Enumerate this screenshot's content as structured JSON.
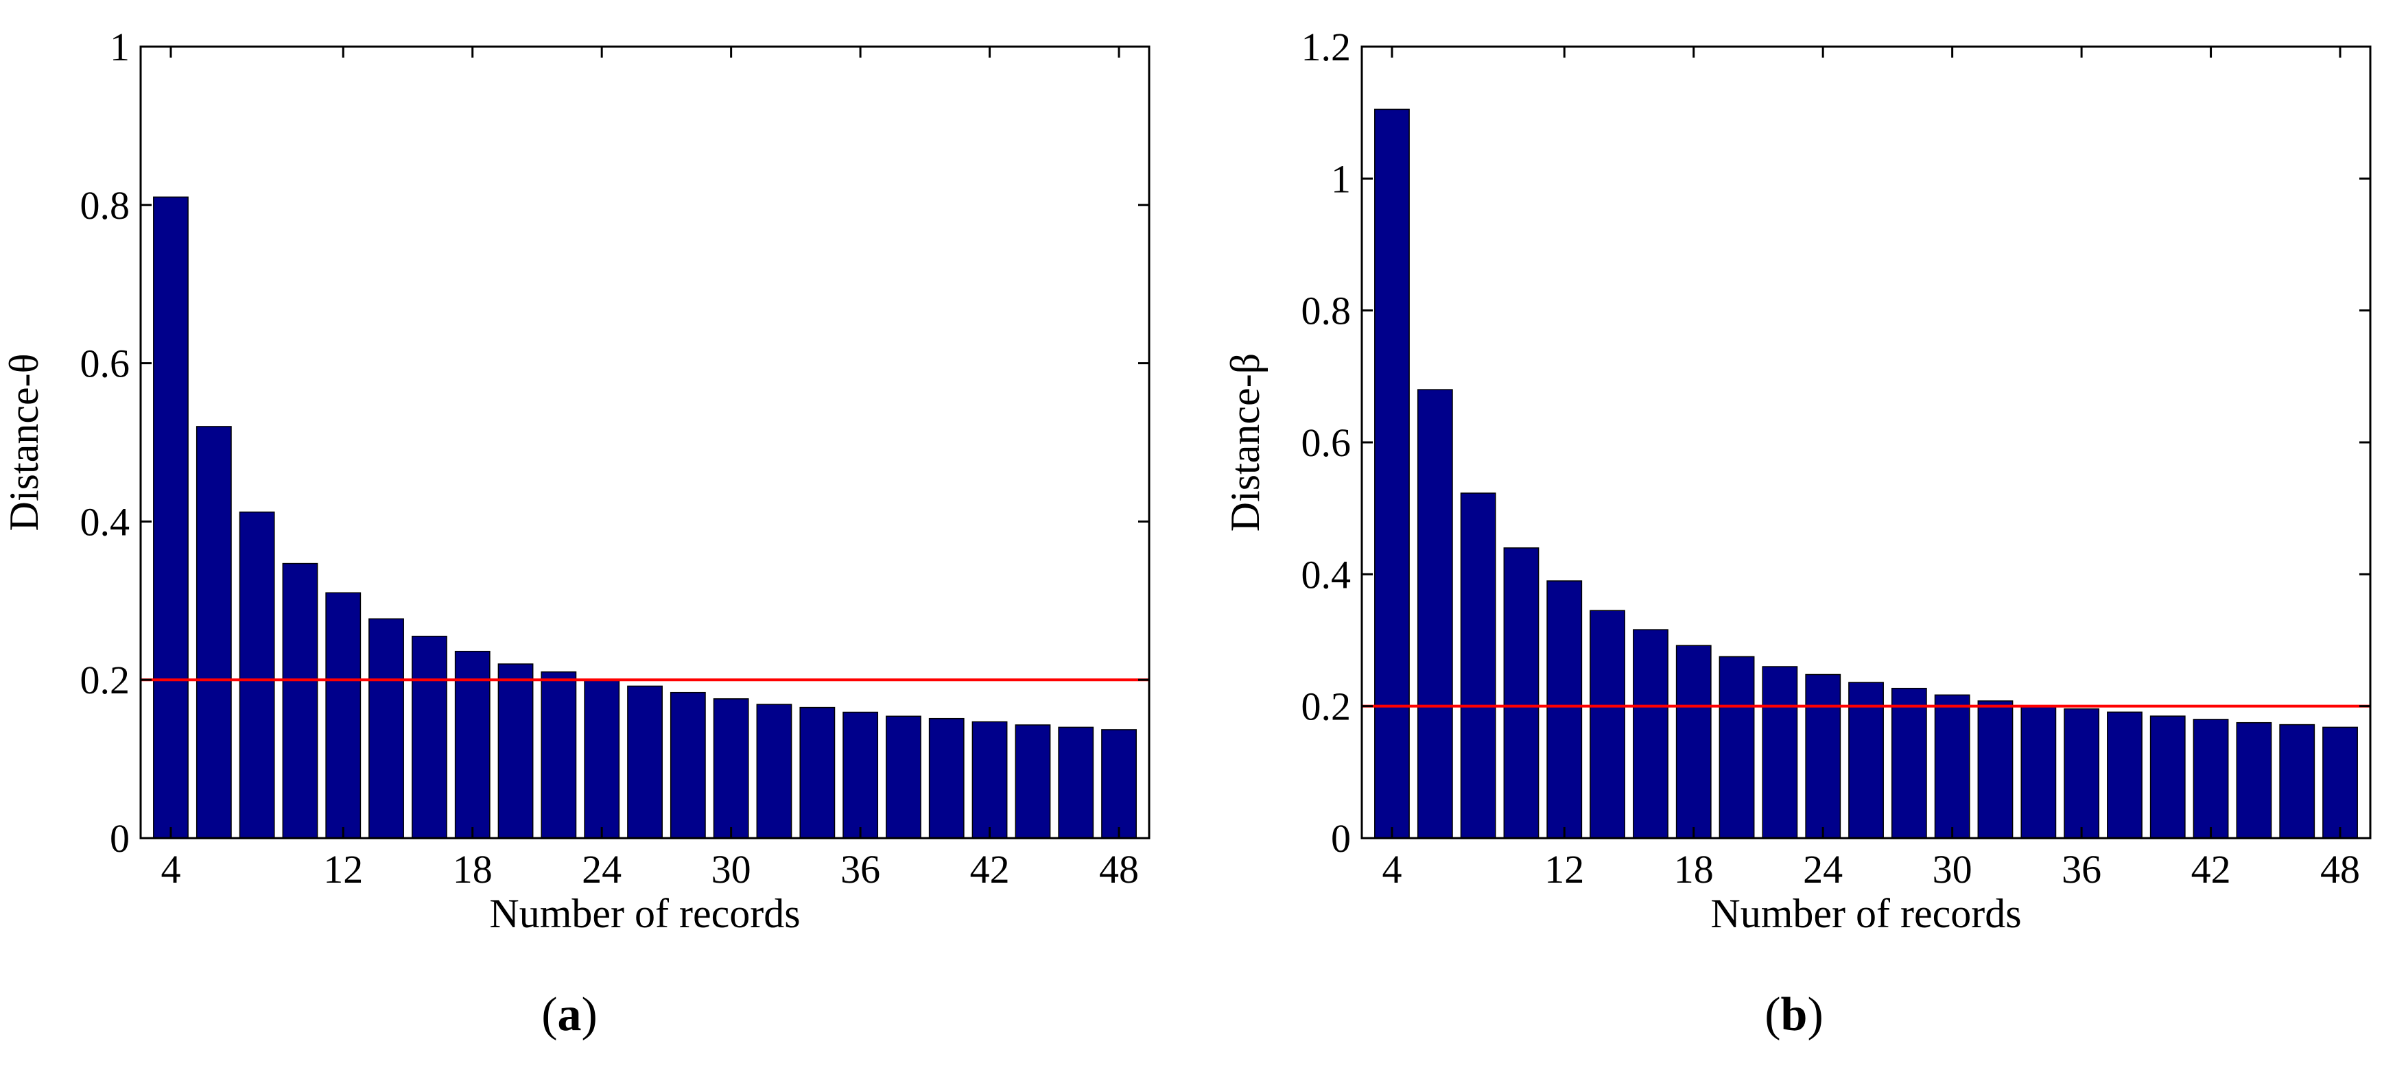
{
  "chart_data": [
    {
      "type": "bar",
      "panel_label": "a",
      "xlabel": "Number of records",
      "ylabel": "Distance-θ",
      "categories": [
        4,
        6,
        8,
        10,
        12,
        14,
        16,
        18,
        20,
        22,
        24,
        26,
        28,
        30,
        32,
        34,
        36,
        38,
        40,
        42,
        44,
        46,
        48
      ],
      "values": [
        0.81,
        0.52,
        0.412,
        0.347,
        0.31,
        0.277,
        0.255,
        0.236,
        0.22,
        0.21,
        0.2,
        0.192,
        0.184,
        0.176,
        0.169,
        0.165,
        0.159,
        0.154,
        0.151,
        0.147,
        0.143,
        0.14,
        0.137
      ],
      "x_ticks": [
        "4",
        "12",
        "18",
        "24",
        "30",
        "36",
        "42",
        "48"
      ],
      "x_tick_values": [
        4,
        12,
        18,
        24,
        30,
        36,
        42,
        48
      ],
      "y_ticks": [
        "0",
        "0.2",
        "0.4",
        "0.6",
        "0.8",
        "1"
      ],
      "y_tick_values": [
        0,
        0.2,
        0.4,
        0.6,
        0.8,
        1.0
      ],
      "ylim": [
        0,
        1.0
      ],
      "xlim": [
        2.6,
        49.4
      ],
      "threshold": 0.2,
      "bar_color": "#00008b",
      "threshold_color": "#ff0000"
    },
    {
      "type": "bar",
      "panel_label": "b",
      "xlabel": "Number of records",
      "ylabel": "Distance-β",
      "categories": [
        4,
        6,
        8,
        10,
        12,
        14,
        16,
        18,
        20,
        22,
        24,
        26,
        28,
        30,
        32,
        34,
        36,
        38,
        40,
        42,
        44,
        46,
        48
      ],
      "values": [
        1.105,
        0.68,
        0.523,
        0.44,
        0.39,
        0.345,
        0.316,
        0.292,
        0.275,
        0.26,
        0.248,
        0.236,
        0.227,
        0.217,
        0.208,
        0.2,
        0.196,
        0.191,
        0.185,
        0.18,
        0.175,
        0.172,
        0.168
      ],
      "x_ticks": [
        "4",
        "12",
        "18",
        "24",
        "30",
        "36",
        "42",
        "48"
      ],
      "x_tick_values": [
        4,
        12,
        18,
        24,
        30,
        36,
        42,
        48
      ],
      "y_ticks": [
        "0",
        "0.2",
        "0.4",
        "0.6",
        "0.8",
        "1",
        "1.2"
      ],
      "y_tick_values": [
        0,
        0.2,
        0.4,
        0.6,
        0.8,
        1.0,
        1.2
      ],
      "ylim": [
        0,
        1.2
      ],
      "xlim": [
        2.6,
        49.4
      ],
      "threshold": 0.2,
      "bar_color": "#00008b",
      "threshold_color": "#ff0000"
    }
  ],
  "captions": {
    "a": "a",
    "b": "b"
  }
}
